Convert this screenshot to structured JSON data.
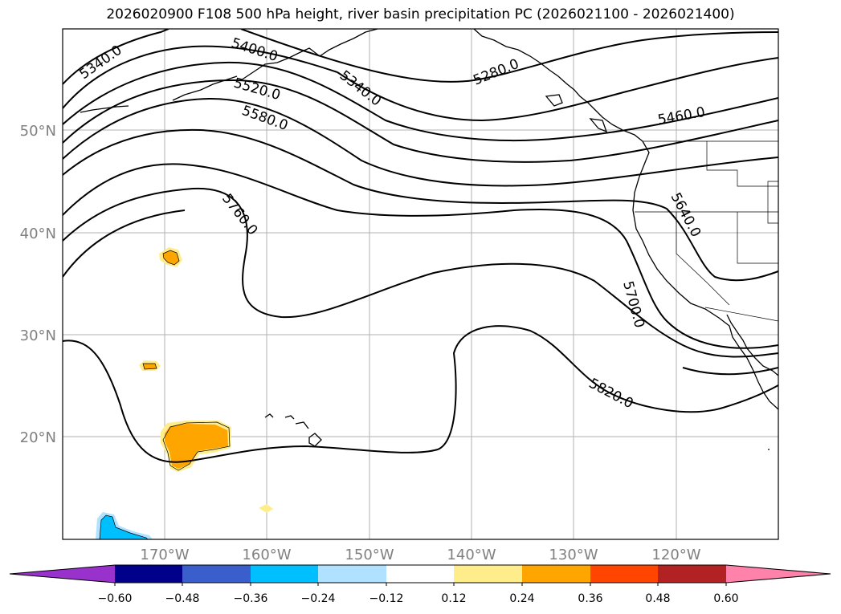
{
  "title": "2026020900 F108 500 hPa height, river basin precipitation PC (2026021100 - 2026021400)",
  "map": {
    "lat_labels": [
      "50°N",
      "40°N",
      "30°N",
      "20°N"
    ],
    "lon_labels": [
      "170°W",
      "160°W",
      "150°W",
      "140°W",
      "130°W",
      "120°W"
    ],
    "tick_label_color": "#808080",
    "contour_labels": [
      "5340.0",
      "5400.0",
      "5340.0",
      "5280.0",
      "5520.0",
      "5580.0",
      "5460.0",
      "5760.0",
      "5640.0",
      "5700.0",
      "5820.0"
    ],
    "contour_color": "#000000"
  },
  "colorbar": {
    "tick_labels": [
      "−0.60",
      "−0.48",
      "−0.36",
      "−0.24",
      "−0.12",
      "0.12",
      "0.24",
      "0.36",
      "0.48",
      "0.60"
    ],
    "colors": [
      "#9932cc",
      "#00008b",
      "#3a5fcd",
      "#00bfff",
      "#b0e2ff",
      "#ffffff",
      "#ffec8b",
      "#ffa500",
      "#ff4500",
      "#b22222",
      "#ff82ab"
    ]
  }
}
